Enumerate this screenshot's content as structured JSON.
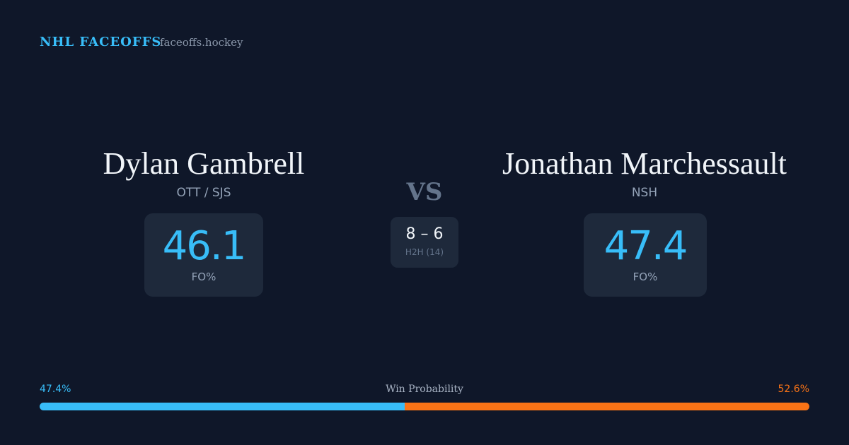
{
  "header": {
    "brand": "NHL FACEOFFS",
    "site": "faceoffs.hockey"
  },
  "players": [
    {
      "name": "Dylan Gambrell",
      "team": "OTT / SJS",
      "stat": "46.1",
      "stat_label": "FO%"
    },
    {
      "name": "Jonathan Marchessault",
      "team": "NSH",
      "stat": "47.4",
      "stat_label": "FO%"
    }
  ],
  "versus": "VS",
  "h2h": {
    "score": "8 – 6",
    "label": "H2H (14)"
  },
  "win_probability": {
    "title": "Win Probability",
    "left": {
      "value": 47.4,
      "label": "47.4%",
      "color": "#38bdf8"
    },
    "right": {
      "value": 52.6,
      "label": "52.6%",
      "color": "#f97316"
    }
  }
}
